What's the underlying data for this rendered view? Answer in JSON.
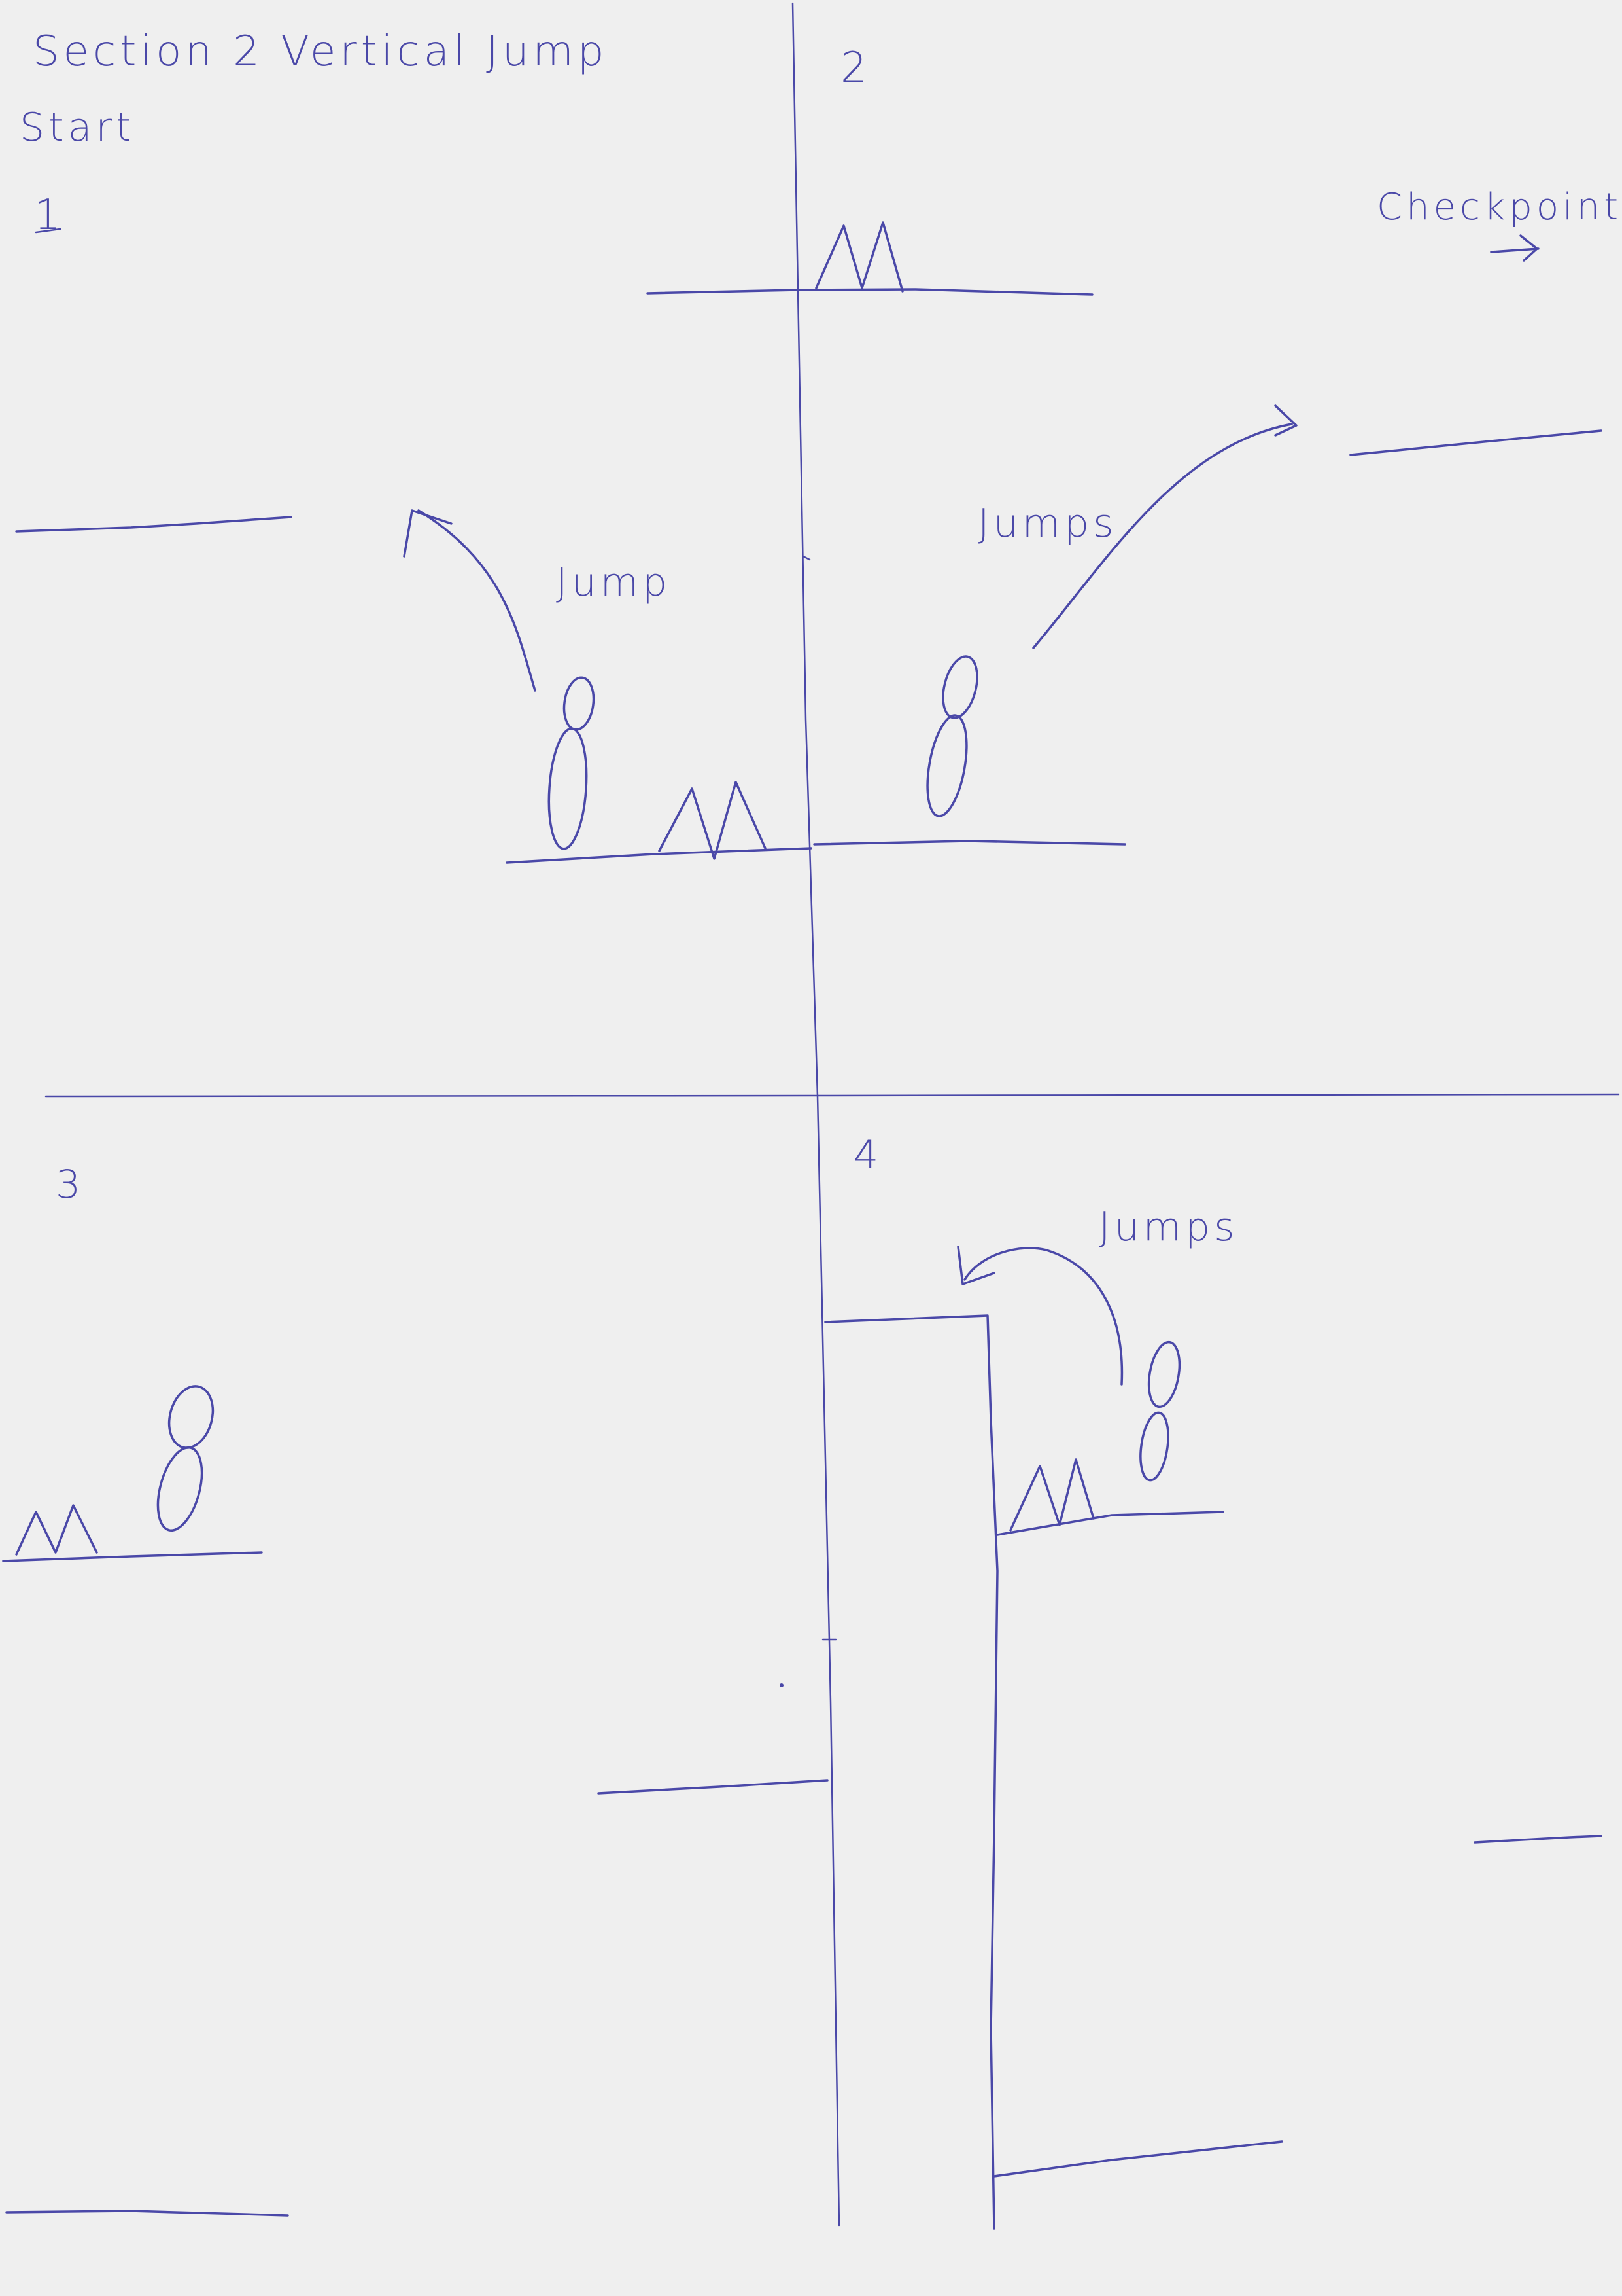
{
  "colors": {
    "paper": "#efefef",
    "ink": "#4a48a8"
  },
  "header": {
    "title": "Section 2 Vertical Jump",
    "start_label": "Start"
  },
  "panels": [
    {
      "number": "1",
      "annotations": [
        {
          "text": "Jump"
        }
      ],
      "icons": [
        "player-figure-icon",
        "spike-icon",
        "jump-arrow-icon"
      ]
    },
    {
      "number": "2",
      "annotations": [
        {
          "text": "Jumps"
        },
        {
          "text": "Checkpoint"
        }
      ],
      "icons": [
        "player-figure-icon",
        "spike-icon",
        "jump-arrow-icon",
        "arrow-right-icon"
      ]
    },
    {
      "number": "3",
      "annotations": [],
      "icons": [
        "player-figure-icon",
        "spike-icon"
      ]
    },
    {
      "number": "4",
      "annotations": [
        {
          "text": "Jumps"
        }
      ],
      "icons": [
        "player-figure-icon",
        "spike-icon",
        "jump-arrow-icon"
      ]
    }
  ]
}
